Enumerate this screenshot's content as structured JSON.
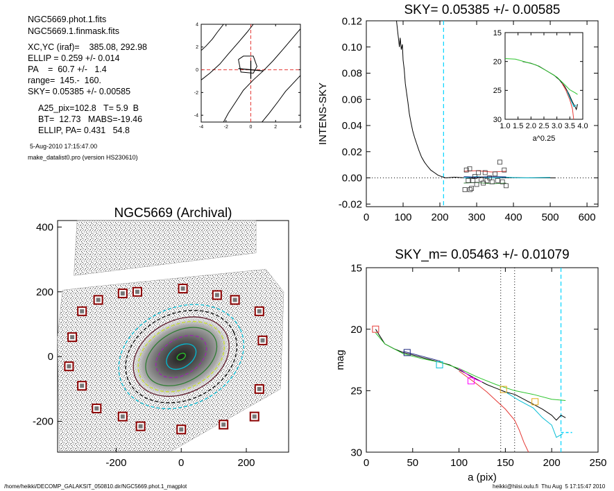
{
  "info": {
    "files": [
      "NGC5669.phot.1.fits",
      "NGC5669.1.finmask.fits"
    ],
    "params": [
      "XC,YC (iraf)=    385.08, 292.98",
      "ELLIP = 0.259 +/- 0.014",
      "PA    =  60.7 +/-   1.4",
      "range=  145.-  160.",
      "SKY= 0.05385 +/- 0.00585"
    ],
    "params2": [
      "A25_pix=102.8   T= 5.9  B",
      "BT=  12.73   MABS=-19.46",
      "ELLIP, PA= 0.431   54.8"
    ],
    "date": "5-Aug-2010 17:15:47.00",
    "program": "make_datalist0.pro (version HS230610)"
  },
  "footer": {
    "left": "/home/heikki/DECOMP_GALAKSIT_050810.dir/NGC5669.phot.1_magplot",
    "right": "heikki@hiisi.oulu.fi  Thu Aug  5 17:15:47 2010"
  },
  "chart_data": [
    {
      "id": "sky",
      "type": "line",
      "title": "SKY= 0.05385 +/- 0.00585",
      "xlabel": "",
      "ylabel": "INTENS-SKY",
      "xlim": [
        0,
        630
      ],
      "ylim": [
        -0.022,
        0.12
      ],
      "xticks": [
        0,
        100,
        200,
        300,
        400,
        500,
        600
      ],
      "yticks": [
        -0.02,
        0.0,
        0.02,
        0.04,
        0.06,
        0.08,
        0.1,
        0.12
      ],
      "ytick_labels": [
        "-0.02",
        "0.00",
        "0.02",
        "0.04",
        "0.06",
        "0.08",
        "0.10",
        "0.12"
      ],
      "vline": 210,
      "series": [
        {
          "color": "#000000",
          "points": [
            [
              82,
              0.12
            ],
            [
              86,
              0.11
            ],
            [
              90,
              0.1
            ],
            [
              92,
              0.107
            ],
            [
              95,
              0.098
            ],
            [
              98,
              0.102
            ],
            [
              100,
              0.09
            ],
            [
              103,
              0.083
            ],
            [
              106,
              0.072
            ],
            [
              110,
              0.064
            ],
            [
              113,
              0.058
            ],
            [
              117,
              0.049
            ],
            [
              121,
              0.043
            ],
            [
              126,
              0.036
            ],
            [
              131,
              0.031
            ],
            [
              137,
              0.026
            ],
            [
              143,
              0.021
            ],
            [
              150,
              0.016
            ],
            [
              158,
              0.012
            ],
            [
              166,
              0.009
            ],
            [
              175,
              0.006
            ],
            [
              185,
              0.004
            ],
            [
              195,
              0.002
            ],
            [
              205,
              0.001
            ],
            [
              215,
              0.0
            ],
            [
              240,
              0.0005
            ],
            [
              270,
              0.0
            ],
            [
              300,
              0.0003
            ],
            [
              350,
              0.0
            ],
            [
              400,
              0.0002
            ],
            [
              450,
              0.0
            ],
            [
              515,
              0.0
            ]
          ]
        },
        {
          "color": "#00bcd4",
          "points": [
            [
              265,
              0.0
            ],
            [
              300,
              0.001
            ],
            [
              340,
              0.0
            ],
            [
              380,
              0.0005
            ],
            [
              420,
              0.0
            ],
            [
              500,
              0.0003
            ]
          ]
        },
        {
          "color": "#2e7d32",
          "points": [
            [
              265,
              -0.004
            ],
            [
              300,
              -0.0035
            ],
            [
              340,
              -0.0045
            ],
            [
              380,
              -0.004
            ]
          ]
        },
        {
          "color": "#e53935",
          "points": [
            [
              265,
              0.005
            ],
            [
              300,
              0.0055
            ],
            [
              340,
              0.0045
            ],
            [
              380,
              0.005
            ]
          ]
        },
        {
          "color": "#1a237e",
          "points": [
            [
              265,
              0.001
            ],
            [
              300,
              0.0005
            ],
            [
              340,
              0.001
            ],
            [
              380,
              0.0008
            ]
          ]
        }
      ],
      "squares": [
        [
          268,
          -0.009
        ],
        [
          272,
          0.006
        ],
        [
          277,
          -0.002
        ],
        [
          281,
          0.007
        ],
        [
          286,
          -0.008
        ],
        [
          290,
          -0.002
        ],
        [
          295,
          0.001
        ],
        [
          300,
          -0.005
        ],
        [
          305,
          0.004
        ],
        [
          312,
          -0.001
        ],
        [
          318,
          -0.004
        ],
        [
          323,
          0.004
        ],
        [
          328,
          -0.002
        ],
        [
          335,
          0.0
        ],
        [
          342,
          -0.003
        ],
        [
          350,
          0.003
        ],
        [
          357,
          -0.002
        ],
        [
          363,
          0.012
        ],
        [
          370,
          -0.003
        ],
        [
          375,
          0.006
        ],
        [
          380,
          -0.006
        ],
        [
          282,
          -0.009
        ]
      ]
    },
    {
      "id": "inset",
      "type": "line",
      "xlabel": "a^0.25",
      "xlim": [
        1.0,
        4.0
      ],
      "ylim": [
        15,
        30
      ],
      "xticks": [
        1.0,
        1.5,
        2.0,
        2.5,
        3.0,
        3.5,
        4.0
      ],
      "xtick_labels": [
        "1.0",
        "1.5",
        "2.0",
        "2.5",
        "3.0",
        "3.5",
        "4.0"
      ],
      "yticks": [
        15,
        20,
        25,
        30
      ],
      "series": [
        {
          "color": "#000000",
          "points": [
            [
              1.68,
              20.0
            ],
            [
              2.0,
              20.3
            ],
            [
              2.3,
              20.8
            ],
            [
              2.6,
              21.6
            ],
            [
              2.9,
              22.4
            ],
            [
              3.1,
              23.2
            ],
            [
              3.3,
              24.3
            ],
            [
              3.45,
              25.5
            ],
            [
              3.6,
              27.0
            ],
            [
              3.7,
              27.8
            ],
            [
              3.75,
              28.3
            ],
            [
              3.8,
              27.4
            ]
          ]
        },
        {
          "color": "#e53935",
          "points": [
            [
              3.2,
              23.8
            ],
            [
              3.35,
              25.0
            ],
            [
              3.5,
              26.6
            ],
            [
              3.6,
              28.2
            ],
            [
              3.65,
              30.0
            ]
          ]
        },
        {
          "color": "#2bc42b",
          "points": [
            [
              1.0,
              19.5
            ],
            [
              1.4,
              19.6
            ],
            [
              1.8,
              20.1
            ],
            [
              2.2,
              20.6
            ],
            [
              2.6,
              21.6
            ],
            [
              3.0,
              22.7
            ],
            [
              3.3,
              24.0
            ],
            [
              3.5,
              24.9
            ],
            [
              3.7,
              25.4
            ],
            [
              3.8,
              25.7
            ]
          ]
        },
        {
          "color": "#00bcd4",
          "points": [
            [
              3.4,
              25.2
            ],
            [
              3.55,
              26.8
            ],
            [
              3.65,
              27.8
            ],
            [
              3.75,
              27.5
            ]
          ]
        }
      ]
    },
    {
      "id": "mag",
      "type": "line",
      "title": "SKY_m=  0.05463 +/- 0.01079",
      "xlabel": "a (pix)",
      "ylabel": "mag",
      "xlim": [
        0,
        250
      ],
      "ylim": [
        15,
        30
      ],
      "xticks": [
        0,
        50,
        100,
        150,
        200,
        250
      ],
      "yticks": [
        15,
        20,
        25,
        30
      ],
      "vlines_dotted": [
        145,
        160
      ],
      "vline_dashed": 210,
      "series": [
        {
          "color": "#000000",
          "points": [
            [
              10,
              20.0
            ],
            [
              15,
              20.6
            ],
            [
              20,
              21.2
            ],
            [
              30,
              21.6
            ],
            [
              40,
              21.9
            ],
            [
              50,
              22.1
            ],
            [
              60,
              22.3
            ],
            [
              70,
              22.5
            ],
            [
              80,
              22.7
            ],
            [
              90,
              22.9
            ],
            [
              100,
              23.3
            ],
            [
              110,
              23.7
            ],
            [
              120,
              24.1
            ],
            [
              130,
              24.5
            ],
            [
              140,
              24.8
            ],
            [
              150,
              25.1
            ],
            [
              160,
              25.3
            ],
            [
              170,
              25.7
            ],
            [
              180,
              26.1
            ],
            [
              190,
              26.5
            ],
            [
              200,
              27.0
            ],
            [
              205,
              27.4
            ],
            [
              210,
              27.0
            ],
            [
              215,
              27.2
            ]
          ]
        },
        {
          "color": "#2bc42b",
          "points": [
            [
              10,
              20.3
            ],
            [
              20,
              21.2
            ],
            [
              40,
              22.0
            ],
            [
              60,
              22.4
            ],
            [
              80,
              22.7
            ],
            [
              100,
              23.2
            ],
            [
              120,
              23.9
            ],
            [
              140,
              24.5
            ],
            [
              160,
              25.0
            ],
            [
              180,
              25.3
            ],
            [
              200,
              25.7
            ],
            [
              215,
              25.8
            ]
          ]
        },
        {
          "color": "#e53935",
          "points": [
            [
              100,
              23.4
            ],
            [
              120,
              24.5
            ],
            [
              130,
              25.1
            ],
            [
              140,
              25.8
            ],
            [
              150,
              26.5
            ],
            [
              160,
              27.4
            ],
            [
              165,
              28.2
            ],
            [
              170,
              29.2
            ],
            [
              175,
              30.0
            ]
          ]
        },
        {
          "color": "#00bcd4",
          "points": [
            [
              150,
              25.1
            ],
            [
              165,
              25.8
            ],
            [
              180,
              26.4
            ],
            [
              190,
              27.2
            ],
            [
              200,
              27.8
            ],
            [
              205,
              28.8
            ],
            [
              212,
              28.5
            ]
          ]
        },
        {
          "color": "#1a237e",
          "points": [
            [
              40,
              21.8
            ],
            [
              60,
              22.2
            ],
            [
              80,
              22.6
            ]
          ]
        },
        {
          "color": "#ff00ff",
          "points": [
            [
              100,
              23.2
            ],
            [
              115,
              24.0
            ],
            [
              125,
              24.3
            ]
          ]
        }
      ],
      "squares": [
        {
          "x": 10,
          "y": 20.0,
          "color": "#e53935"
        },
        {
          "x": 44,
          "y": 21.9,
          "color": "#1a237e"
        },
        {
          "x": 79,
          "y": 22.9,
          "color": "#00bcd4"
        },
        {
          "x": 113,
          "y": 24.2,
          "color": "#ff00ff"
        },
        {
          "x": 148,
          "y": 24.9,
          "color": "#e6a817"
        },
        {
          "x": 182,
          "y": 25.9,
          "color": "#e6a817"
        }
      ],
      "sky_marker": [
        210,
        28.4
      ]
    },
    {
      "id": "contour",
      "type": "contour",
      "xlim": [
        -4,
        4
      ],
      "ylim": [
        -4.6,
        4
      ],
      "xticks": [
        -4,
        -2,
        0,
        2,
        4
      ],
      "yticks": [
        -4,
        -2,
        0,
        2,
        4
      ],
      "lines": [
        [
          [
            -4,
            1.7
          ],
          [
            -3.6,
            2.1
          ],
          [
            -3.1,
            2.7
          ],
          [
            -2.7,
            3.3
          ],
          [
            -2.2,
            4
          ]
        ],
        [
          [
            -4,
            -0.9
          ],
          [
            -3.3,
            -0.3
          ],
          [
            -2.5,
            0.5
          ],
          [
            -1.8,
            1.4
          ],
          [
            -1.0,
            2.4
          ],
          [
            -0.3,
            3.3
          ],
          [
            0.2,
            4
          ]
        ],
        [
          [
            -2.2,
            -4.6
          ],
          [
            -1.8,
            -3.8
          ],
          [
            -1.2,
            -2.8
          ],
          [
            -0.6,
            -1.8
          ],
          [
            0.2,
            -0.9
          ],
          [
            1.0,
            -0.1
          ],
          [
            1.8,
            0.8
          ],
          [
            2.6,
            1.8
          ],
          [
            3.3,
            2.7
          ],
          [
            4,
            3.6
          ]
        ],
        [
          [
            0.9,
            -4.6
          ],
          [
            1.5,
            -3.8
          ],
          [
            2.2,
            -2.8
          ],
          [
            2.8,
            -1.9
          ],
          [
            3.4,
            -1.2
          ],
          [
            4,
            -0.5
          ]
        ],
        [
          [
            -1.0,
            0.9
          ],
          [
            -0.6,
            1.2
          ],
          [
            0.2,
            1.2
          ],
          [
            0.5,
            0.3
          ],
          [
            0.2,
            -0.3
          ],
          [
            -0.8,
            -0.2
          ],
          [
            -1.0,
            0.9
          ]
        ]
      ],
      "cross": [
        [
          -1.0,
          0.1
        ],
        [
          1.0,
          -0.1
        ]
      ]
    },
    {
      "id": "image",
      "type": "image",
      "title": "NGC5669 (Archival)",
      "xlim": [
        -380,
        330
      ],
      "ylim": [
        -295,
        420
      ],
      "xticks": [
        -200,
        0,
        200
      ],
      "yticks": [
        -200,
        0,
        200,
        400
      ],
      "ellipses": [
        {
          "rx": 200,
          "ry": 150,
          "rot": -25,
          "color": "#00bcd4",
          "dash": true
        },
        {
          "rx": 178,
          "ry": 133,
          "rot": -25,
          "color": "#000000",
          "dash": true
        },
        {
          "rx": 155,
          "ry": 112,
          "rot": -27,
          "color": "#5d1a2a",
          "dash": false
        },
        {
          "rx": 140,
          "ry": 98,
          "rot": -27,
          "color": "#c8e02a",
          "dash": true
        },
        {
          "rx": 118,
          "ry": 78,
          "rot": -30,
          "color": "#2e7d32",
          "dash": false
        },
        {
          "rx": 85,
          "ry": 55,
          "rot": -32,
          "color": "#9c27b0",
          "dash": true
        },
        {
          "rx": 50,
          "ry": 33,
          "rot": -34,
          "color": "#00bcd4",
          "dash": false
        },
        {
          "rx": 14,
          "ry": 9,
          "rot": -30,
          "color": "#2bc42b",
          "dash": false
        }
      ],
      "boxes": [
        [
          -335,
          60
        ],
        [
          -345,
          -30
        ],
        [
          -305,
          -90
        ],
        [
          -305,
          140
        ],
        [
          -255,
          175
        ],
        [
          -260,
          -160
        ],
        [
          -180,
          195
        ],
        [
          -180,
          -185
        ],
        [
          -135,
          200
        ],
        [
          -125,
          -215
        ],
        [
          5,
          210
        ],
        [
          0,
          -225
        ],
        [
          110,
          190
        ],
        [
          130,
          -210
        ],
        [
          165,
          175
        ],
        [
          225,
          -185
        ],
        [
          240,
          140
        ],
        [
          250,
          50
        ],
        [
          240,
          -100
        ]
      ]
    }
  ]
}
